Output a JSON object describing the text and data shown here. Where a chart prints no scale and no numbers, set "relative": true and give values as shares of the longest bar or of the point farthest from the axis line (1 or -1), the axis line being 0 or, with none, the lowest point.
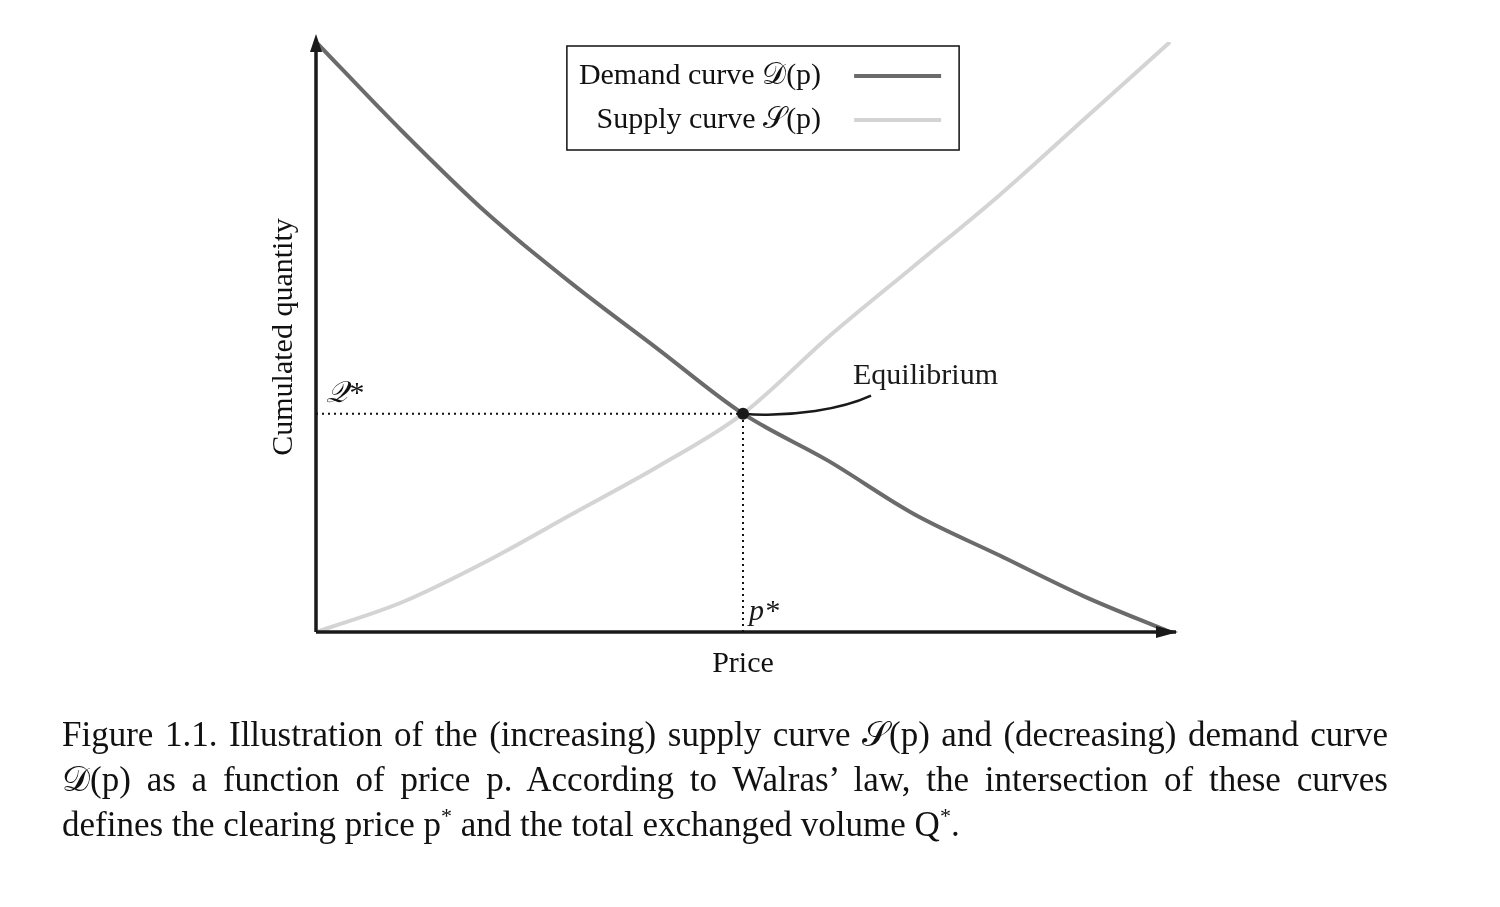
{
  "chart_data": {
    "type": "line",
    "relative": true,
    "xlabel": "Price",
    "ylabel": "Cumulated quantity",
    "categories": [
      null,
      null,
      null,
      null,
      null,
      null,
      null,
      null,
      null,
      null,
      null
    ],
    "series": [
      {
        "name": "Demand curve 𝒟(p)",
        "color": "#6b6b6b",
        "values": [
          1.0,
          0.85,
          0.71,
          0.59,
          0.48,
          0.37,
          0.29,
          0.2,
          0.13,
          0.06,
          0
        ]
      },
      {
        "name": "Supply curve 𝒮(p)",
        "color": "#d4d4d4",
        "values": [
          0,
          0.05,
          0.12,
          0.2,
          0.28,
          0.37,
          0.5,
          0.62,
          0.74,
          0.87,
          1.0
        ]
      }
    ],
    "ref_lines": [
      {
        "axis": "y",
        "value": 0.37,
        "label": "𝒬*",
        "line_style": "dotted"
      }
    ],
    "annotations": [
      "Equilibrium",
      "p*",
      "Figure 1.1. Illustration of the (increasing) supply curve 𝒮(p) and (decreasing) demand curve 𝒟(p) as a function of price p. According to Walras’ law, the intersection of these curves defines the clearing price p$^{*}$ and the total exchanged volume Q$^{*}$."
    ],
    "legend": "top",
    "marker": "none",
    "line_style": "solid",
    "grid": false
  }
}
